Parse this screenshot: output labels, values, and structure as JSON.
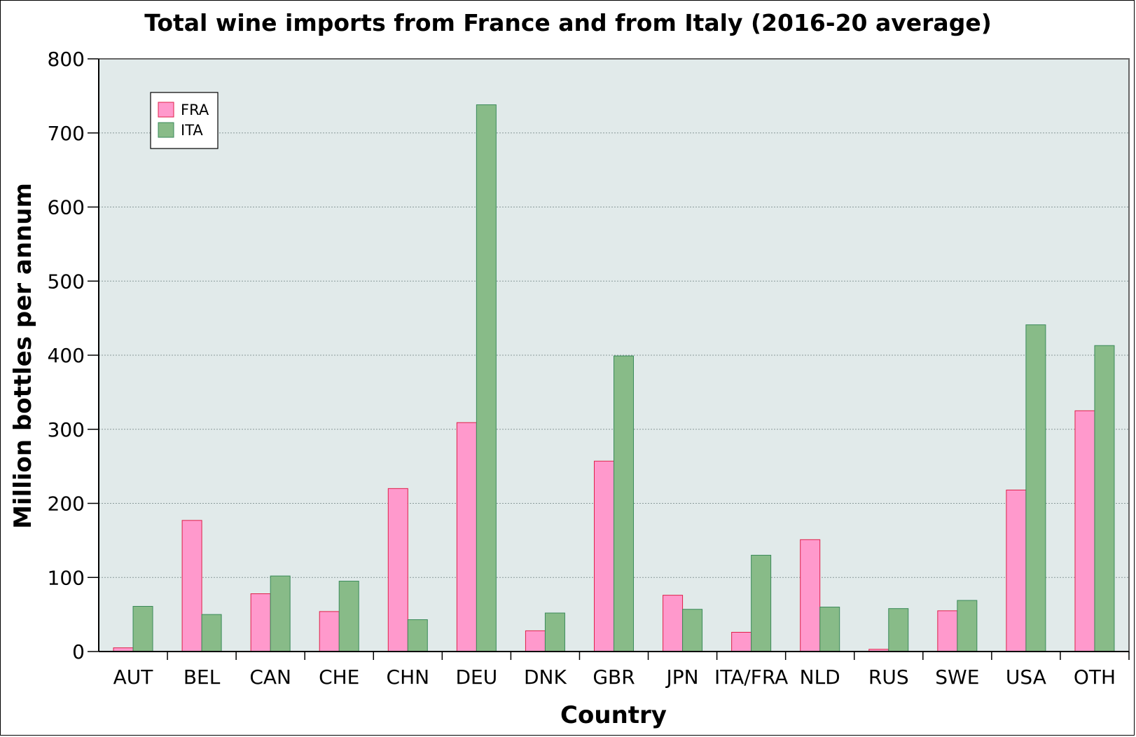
{
  "chart_data": {
    "type": "bar",
    "title": "Total wine imports from France and from Italy (2016-20 average)",
    "xlabel": "Country",
    "ylabel": "Million bottles per annum",
    "ylim": [
      0,
      800
    ],
    "yticks": [
      0,
      100,
      200,
      300,
      400,
      500,
      600,
      700,
      800
    ],
    "categories": [
      "AUT",
      "BEL",
      "CAN",
      "CHE",
      "CHN",
      "DEU",
      "DNK",
      "GBR",
      "JPN",
      "ITA/FRA",
      "NLD",
      "RUS",
      "SWE",
      "USA",
      "OTH"
    ],
    "series": [
      {
        "name": "FRA",
        "color": "#ff99cc",
        "stroke": "#e0204a",
        "values": [
          5,
          177,
          78,
          54,
          220,
          309,
          28,
          257,
          76,
          26,
          151,
          3,
          55,
          218,
          325
        ]
      },
      {
        "name": "ITA",
        "color": "#88bb88",
        "stroke": "#3a8a5a",
        "values": [
          61,
          50,
          102,
          95,
          43,
          738,
          52,
          399,
          57,
          130,
          60,
          58,
          69,
          441,
          413
        ]
      }
    ],
    "grid": true,
    "plot_background": "#e1eaea",
    "legend_position": "top-left"
  }
}
